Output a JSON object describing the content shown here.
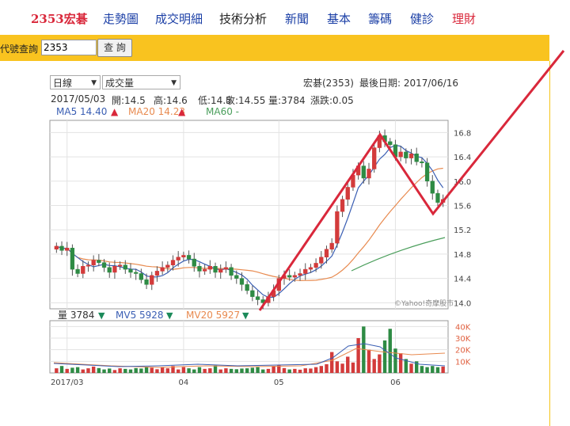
{
  "nav": {
    "items": [
      {
        "label": "2353宏碁",
        "color": "#d9283b",
        "bold": true
      },
      {
        "label": "走勢圖",
        "color": "#1b3fa6"
      },
      {
        "label": "成交明細",
        "color": "#1b3fa6"
      },
      {
        "label": "技術分析",
        "color": "#222222"
      },
      {
        "label": "新聞",
        "color": "#1b3fa6"
      },
      {
        "label": "基本",
        "color": "#1b3fa6"
      },
      {
        "label": "籌碼",
        "color": "#1b3fa6"
      },
      {
        "label": "健診",
        "color": "#1b3fa6"
      },
      {
        "label": "理財",
        "color": "#d9283b"
      }
    ]
  },
  "search": {
    "label": "代號查詢",
    "value": "2353",
    "button": "查 詢"
  },
  "controls": {
    "period": "日線",
    "indicator": "成交量"
  },
  "header": {
    "stock": "宏碁(2353)",
    "last_date": "最後日期: 2017/06/16"
  },
  "ohlc": {
    "date": "2017/05/03",
    "open": "開:14.5",
    "high": "高:14.6",
    "low": "低:14.5",
    "close": "收:14.55",
    "volume": "量:3784",
    "change": "漲跌:0.05"
  },
  "ma_legend": {
    "ma5": "MA5 14.40",
    "ma20": "MA20 14.23",
    "ma60": "MA60 -",
    "up": "▲"
  },
  "vol_legend": {
    "vol": "量 3784",
    "mv5": "MV5 5928",
    "mv20": "MV20 5927",
    "down": "▼"
  },
  "watermark": "©Yahoo!奇摩股市",
  "chart_data": {
    "type": "candlestick",
    "price_ticks": [
      "16.8",
      "16.4",
      "16.0",
      "15.6",
      "15.2",
      "14.8",
      "14.4",
      "14.0"
    ],
    "price_tick_values": [
      16.8,
      16.4,
      16.0,
      15.6,
      15.2,
      14.8,
      14.4,
      14.0
    ],
    "price_range": [
      13.9,
      17.0
    ],
    "volume_ticks": [
      "40K",
      "30K",
      "20K",
      "10K"
    ],
    "volume_tick_values": [
      40000,
      30000,
      20000,
      10000
    ],
    "volume_range": [
      0,
      45000
    ],
    "x_labels": [
      {
        "label": "2017/03",
        "index": 2
      },
      {
        "label": "04",
        "index": 24
      },
      {
        "label": "05",
        "index": 42
      },
      {
        "label": "06",
        "index": 64
      }
    ],
    "closes": [
      14.93,
      14.86,
      14.9,
      14.55,
      14.48,
      14.6,
      14.62,
      14.7,
      14.66,
      14.58,
      14.5,
      14.6,
      14.62,
      14.55,
      14.5,
      14.48,
      14.38,
      14.3,
      14.45,
      14.52,
      14.58,
      14.62,
      14.7,
      14.75,
      14.78,
      14.72,
      14.6,
      14.52,
      14.55,
      14.6,
      14.5,
      14.55,
      14.58,
      14.45,
      14.4,
      14.3,
      14.2,
      14.1,
      14.05,
      14.0,
      14.1,
      14.2,
      14.4,
      14.45,
      14.42,
      14.45,
      14.48,
      14.55,
      14.58,
      14.65,
      14.75,
      14.88,
      14.98,
      15.5,
      15.7,
      15.9,
      16.1,
      16.25,
      16.05,
      16.2,
      16.55,
      16.75,
      16.65,
      16.6,
      16.4,
      16.48,
      16.38,
      16.45,
      16.32,
      16.3,
      16.0,
      15.8,
      15.65,
      15.7
    ],
    "volumes": [
      4000,
      6000,
      3500,
      4500,
      5000,
      3000,
      4000,
      5500,
      4200,
      3000,
      3800,
      2500,
      4000,
      3500,
      3000,
      4200,
      3800,
      5000,
      4500,
      3200,
      5000,
      4000,
      6000,
      3000,
      5000,
      4000,
      3000,
      5000,
      3500,
      4000,
      6500,
      3000,
      4000,
      3500,
      3200,
      3800,
      4000,
      4500,
      5000,
      3000,
      3500,
      6000,
      7000,
      4200,
      3000,
      3500,
      2800,
      4000,
      3800,
      5000,
      6000,
      7500,
      18000,
      10000,
      8000,
      14000,
      9000,
      30000,
      40000,
      20000,
      12000,
      16000,
      28000,
      38000,
      21000,
      17000,
      12000,
      8000,
      10000,
      6000,
      5000,
      6000,
      5000,
      5500
    ]
  }
}
